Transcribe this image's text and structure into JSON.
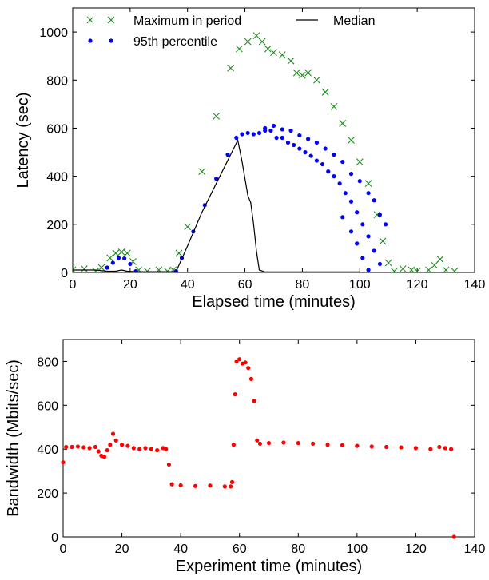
{
  "colors": {
    "max": "#228B22",
    "p95": "#0000FF",
    "median": "#000000",
    "bandwidth": "#FF0000"
  },
  "chart_data": [
    {
      "type": "scatter",
      "xlabel": "Elapsed time (minutes)",
      "ylabel": "Latency (sec)",
      "xlim": [
        0,
        140
      ],
      "ylim": [
        0,
        1100
      ],
      "xticks": [
        0,
        20,
        40,
        60,
        80,
        100,
        120,
        140
      ],
      "yticks": [
        0,
        200,
        400,
        600,
        800,
        1000
      ],
      "grid": false,
      "legend_position": "top",
      "series": [
        {
          "name": "Maximum in period",
          "marker": "x",
          "points": [
            [
              0,
              10
            ],
            [
              4,
              15
            ],
            [
              8,
              5
            ],
            [
              10,
              20
            ],
            [
              13,
              60
            ],
            [
              15,
              80
            ],
            [
              17,
              85
            ],
            [
              19,
              80
            ],
            [
              21,
              45
            ],
            [
              23,
              10
            ],
            [
              26,
              5
            ],
            [
              30,
              10
            ],
            [
              33,
              5
            ],
            [
              35,
              10
            ],
            [
              37,
              80
            ],
            [
              40,
              190
            ],
            [
              45,
              420
            ],
            [
              50,
              650
            ],
            [
              55,
              850
            ],
            [
              58,
              930
            ],
            [
              61,
              960
            ],
            [
              64,
              985
            ],
            [
              66,
              960
            ],
            [
              68,
              930
            ],
            [
              70,
              915
            ],
            [
              73,
              905
            ],
            [
              76,
              880
            ],
            [
              78,
              830
            ],
            [
              80,
              820
            ],
            [
              82,
              830
            ],
            [
              85,
              800
            ],
            [
              88,
              750
            ],
            [
              91,
              690
            ],
            [
              94,
              620
            ],
            [
              97,
              550
            ],
            [
              100,
              460
            ],
            [
              103,
              370
            ],
            [
              106,
              240
            ],
            [
              108,
              130
            ],
            [
              110,
              40
            ],
            [
              112,
              5
            ],
            [
              115,
              15
            ],
            [
              118,
              10
            ],
            [
              120,
              5
            ],
            [
              124,
              10
            ],
            [
              126,
              30
            ],
            [
              128,
              55
            ],
            [
              130,
              10
            ],
            [
              133,
              5
            ]
          ]
        },
        {
          "name": "95th percentile",
          "marker": "dot",
          "points": [
            [
              12,
              20
            ],
            [
              14,
              40
            ],
            [
              16,
              60
            ],
            [
              18,
              58
            ],
            [
              20,
              35
            ],
            [
              22,
              5
            ],
            [
              36,
              5
            ],
            [
              38,
              60
            ],
            [
              42,
              170
            ],
            [
              46,
              280
            ],
            [
              50,
              390
            ],
            [
              54,
              490
            ],
            [
              57,
              560
            ],
            [
              59,
              575
            ],
            [
              61,
              580
            ],
            [
              63,
              575
            ],
            [
              65,
              580
            ],
            [
              67,
              600
            ],
            [
              69,
              590
            ],
            [
              71,
              560
            ],
            [
              73,
              560
            ],
            [
              75,
              540
            ],
            [
              77,
              530
            ],
            [
              79,
              515
            ],
            [
              81,
              500
            ],
            [
              83,
              485
            ],
            [
              85,
              465
            ],
            [
              87,
              450
            ],
            [
              89,
              420
            ],
            [
              91,
              400
            ],
            [
              93,
              370
            ],
            [
              95,
              330
            ],
            [
              97,
              295
            ],
            [
              99,
              250
            ],
            [
              101,
              200
            ],
            [
              103,
              150
            ],
            [
              105,
              90
            ],
            [
              107,
              35
            ],
            [
              67,
              590
            ],
            [
              70,
              610
            ],
            [
              73,
              595
            ],
            [
              76,
              590
            ],
            [
              79,
              570
            ],
            [
              82,
              555
            ],
            [
              85,
              540
            ],
            [
              88,
              515
            ],
            [
              91,
              490
            ],
            [
              94,
              460
            ],
            [
              97,
              410
            ],
            [
              100,
              380
            ],
            [
              103,
              330
            ],
            [
              105,
              300
            ],
            [
              107,
              240
            ],
            [
              109,
              200
            ],
            [
              94,
              230
            ],
            [
              97,
              170
            ],
            [
              99,
              120
            ],
            [
              101,
              60
            ],
            [
              103,
              10
            ]
          ]
        },
        {
          "name": "Median",
          "marker": "line",
          "points": [
            [
              0,
              10
            ],
            [
              8,
              10
            ],
            [
              12,
              5
            ],
            [
              15,
              5
            ],
            [
              17,
              10
            ],
            [
              19,
              5
            ],
            [
              22,
              3
            ],
            [
              36,
              3
            ],
            [
              40,
              110
            ],
            [
              45,
              250
            ],
            [
              50,
              370
            ],
            [
              55,
              490
            ],
            [
              57.5,
              550
            ],
            [
              59,
              460
            ],
            [
              61,
              320
            ],
            [
              62,
              290
            ],
            [
              63,
              200
            ],
            [
              64,
              90
            ],
            [
              65,
              10
            ],
            [
              67,
              2
            ],
            [
              100,
              2
            ]
          ]
        }
      ]
    },
    {
      "type": "scatter",
      "xlabel": "Experiment time (minutes)",
      "ylabel": "Bandwidth (Mbits/sec)",
      "xlim": [
        0,
        140
      ],
      "ylim": [
        0,
        900
      ],
      "xticks": [
        0,
        20,
        40,
        60,
        80,
        100,
        120,
        140
      ],
      "yticks": [
        0,
        200,
        400,
        600,
        800
      ],
      "grid": false,
      "series": [
        {
          "name": "",
          "marker": "dot",
          "points": [
            [
              0,
              340
            ],
            [
              1,
              410
            ],
            [
              3,
              410
            ],
            [
              5,
              412
            ],
            [
              7,
              408
            ],
            [
              9,
              405
            ],
            [
              11,
              410
            ],
            [
              12,
              390
            ],
            [
              13,
              370
            ],
            [
              14,
              365
            ],
            [
              15,
              395
            ],
            [
              16,
              420
            ],
            [
              17,
              470
            ],
            [
              18,
              440
            ],
            [
              20,
              420
            ],
            [
              22,
              415
            ],
            [
              24,
              405
            ],
            [
              26,
              400
            ],
            [
              28,
              405
            ],
            [
              30,
              400
            ],
            [
              32,
              395
            ],
            [
              34,
              405
            ],
            [
              35,
              400
            ],
            [
              36,
              330
            ],
            [
              37,
              240
            ],
            [
              40,
              235
            ],
            [
              45,
              232
            ],
            [
              50,
              234
            ],
            [
              55,
              230
            ],
            [
              57,
              230
            ],
            [
              57.5,
              250
            ],
            [
              58,
              420
            ],
            [
              58.5,
              650
            ],
            [
              59,
              800
            ],
            [
              60,
              810
            ],
            [
              61,
              790
            ],
            [
              62,
              795
            ],
            [
              63,
              770
            ],
            [
              64,
              720
            ],
            [
              65,
              620
            ],
            [
              66,
              440
            ],
            [
              67,
              425
            ],
            [
              70,
              428
            ],
            [
              75,
              430
            ],
            [
              80,
              428
            ],
            [
              85,
              425
            ],
            [
              90,
              420
            ],
            [
              95,
              418
            ],
            [
              100,
              415
            ],
            [
              105,
              412
            ],
            [
              110,
              410
            ],
            [
              115,
              408
            ],
            [
              120,
              405
            ],
            [
              125,
              400
            ],
            [
              128,
              410
            ],
            [
              130,
              405
            ],
            [
              132,
              400
            ],
            [
              133,
              0
            ]
          ]
        }
      ]
    }
  ]
}
